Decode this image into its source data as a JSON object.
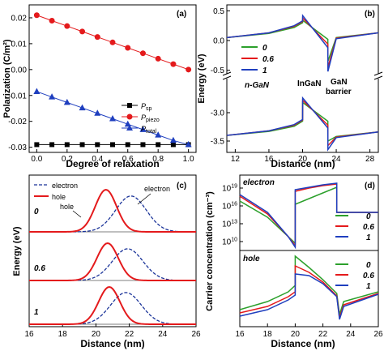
{
  "panels": {
    "a": {
      "label": "(a)",
      "xlabel": "Degree of relaxation",
      "ylabel": "Polarization (C/m²)",
      "xticks": [
        "0.0",
        "0.2",
        "0.4",
        "0.6",
        "0.8",
        "1.0"
      ],
      "yticks": [
        "0.02",
        "0.01",
        "0.00",
        "-0.01",
        "-0.02",
        "-0.03"
      ],
      "legend": [
        {
          "main": "P",
          "sub": "sp"
        },
        {
          "main": "P",
          "sub": "piezo"
        },
        {
          "main": "P",
          "sub": "total"
        }
      ]
    },
    "b": {
      "label": "(b)",
      "xlabel": "Distance (nm)",
      "ylabel": "Energy (eV)",
      "xticks": [
        "12",
        "16",
        "20",
        "24",
        "28"
      ],
      "yticks_top": [
        "0.5",
        "0.0",
        "-0.5"
      ],
      "yticks_bottom": [
        "-3.0",
        "-3.5"
      ],
      "legend": [
        "0",
        "0.6",
        "1"
      ],
      "annotations": [
        "n-GaN",
        "InGaN",
        "GaN",
        "barrier"
      ]
    },
    "c": {
      "label": "(c)",
      "xlabel": "Distance (nm)",
      "ylabel": "Energy (eV)",
      "xticks": [
        "16",
        "18",
        "20",
        "22",
        "24",
        "26"
      ],
      "legend": [
        "electron",
        "hole"
      ],
      "curve_labels": {
        "hole": "hole",
        "electron": "electron"
      },
      "row_labels": [
        "0",
        "0.6",
        "1"
      ]
    },
    "d": {
      "label": "(d)",
      "xlabel": "Distance (nm)",
      "ylabel": "Carrier concentration (cm⁻³)",
      "xticks": [
        "16",
        "18",
        "20",
        "22",
        "24",
        "26"
      ],
      "yticks": [
        "10",
        "10",
        "10",
        "10"
      ],
      "ytick_exp": [
        "19",
        "16",
        "13",
        "10"
      ],
      "sub_labels": [
        "electron",
        "hole"
      ],
      "legend": [
        "0",
        "0.6",
        "1"
      ]
    }
  },
  "colors": {
    "green": "#2ca02c",
    "red": "#e41a1c",
    "blue": "#1f3fbf",
    "navy": "#1a3399"
  },
  "chart_data": [
    {
      "type": "scatter",
      "panel": "a",
      "x": [
        0.0,
        0.1,
        0.2,
        0.3,
        0.4,
        0.5,
        0.6,
        0.7,
        0.8,
        0.9,
        1.0
      ],
      "xlim": [
        -0.05,
        1.05
      ],
      "ylim": [
        -0.032,
        0.025
      ],
      "series": [
        {
          "name": "P_sp",
          "marker": "square",
          "values": [
            -0.029,
            -0.029,
            -0.029,
            -0.029,
            -0.029,
            -0.029,
            -0.029,
            -0.029,
            -0.029,
            -0.029,
            -0.029
          ]
        },
        {
          "name": "P_piezo",
          "marker": "circle",
          "values": [
            0.021,
            0.0189,
            0.0168,
            0.0147,
            0.0126,
            0.0105,
            0.0084,
            0.0063,
            0.0042,
            0.0021,
            0.0
          ]
        },
        {
          "name": "P_total",
          "marker": "triangle",
          "values": [
            -0.0085,
            -0.0106,
            -0.0127,
            -0.0148,
            -0.0169,
            -0.019,
            -0.0211,
            -0.0232,
            -0.0253,
            -0.0274,
            -0.029
          ]
        }
      ]
    },
    {
      "type": "line",
      "panel": "b",
      "xlim": [
        11,
        29
      ],
      "ylim_top": [
        -0.6,
        0.6
      ],
      "ylim_bottom": [
        -3.7,
        -2.4
      ],
      "series": [
        {
          "name": "0",
          "cb": [
            [
              11,
              0.05
            ],
            [
              16,
              0.12
            ],
            [
              19,
              0.22
            ],
            [
              20,
              0.3
            ],
            [
              20.01,
              0.34
            ],
            [
              23,
              0.02
            ],
            [
              23.01,
              -0.35
            ],
            [
              24,
              0.05
            ],
            [
              29,
              0.13
            ]
          ],
          "vb": [
            [
              11,
              -3.4
            ],
            [
              16,
              -3.33
            ],
            [
              19,
              -3.24
            ],
            [
              20,
              -3.15
            ],
            [
              20.01,
              -2.82
            ],
            [
              23,
              -3.15
            ],
            [
              23.01,
              -3.5
            ],
            [
              24,
              -3.42
            ],
            [
              29,
              -3.34
            ]
          ]
        },
        {
          "name": "0.6",
          "cb": [
            [
              11,
              0.05
            ],
            [
              16,
              0.13
            ],
            [
              19,
              0.24
            ],
            [
              20,
              0.32
            ],
            [
              20.01,
              0.38
            ],
            [
              23,
              -0.06
            ],
            [
              23.01,
              -0.45
            ],
            [
              24,
              0.04
            ],
            [
              29,
              0.13
            ]
          ],
          "vb": [
            [
              11,
              -3.4
            ],
            [
              16,
              -3.32
            ],
            [
              19,
              -3.22
            ],
            [
              20,
              -3.13
            ],
            [
              20.01,
              -2.78
            ],
            [
              23,
              -3.22
            ],
            [
              23.01,
              -3.58
            ],
            [
              24,
              -3.43
            ],
            [
              29,
              -3.34
            ]
          ]
        },
        {
          "name": "1",
          "cb": [
            [
              11,
              0.05
            ],
            [
              16,
              0.13
            ],
            [
              19,
              0.25
            ],
            [
              20,
              0.33
            ],
            [
              20.01,
              0.42
            ],
            [
              23,
              -0.12
            ],
            [
              23.01,
              -0.52
            ],
            [
              24,
              0.03
            ],
            [
              29,
              0.13
            ]
          ],
          "vb": [
            [
              11,
              -3.4
            ],
            [
              16,
              -3.32
            ],
            [
              19,
              -3.21
            ],
            [
              20,
              -3.12
            ],
            [
              20.01,
              -2.74
            ],
            [
              23,
              -3.27
            ],
            [
              23.01,
              -3.65
            ],
            [
              24,
              -3.44
            ],
            [
              29,
              -3.34
            ]
          ]
        }
      ]
    },
    {
      "type": "line",
      "panel": "c",
      "xlim": [
        16,
        26
      ],
      "rows": [
        {
          "label": "0",
          "hole_center": 20.6,
          "electron_center": 22.1
        },
        {
          "label": "0.6",
          "hole_center": 20.7,
          "electron_center": 21.9
        },
        {
          "label": "1",
          "hole_center": 20.8,
          "electron_center": 21.8
        }
      ]
    },
    {
      "type": "line",
      "panel": "d",
      "xlim": [
        16,
        26
      ],
      "series_names": [
        "0",
        "0.6",
        "1"
      ]
    }
  ]
}
